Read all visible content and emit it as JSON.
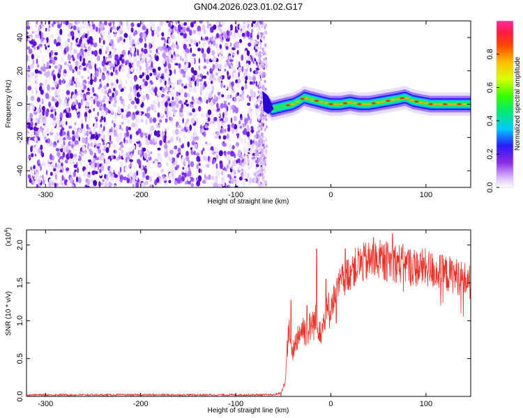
{
  "title": "GN04.2026.023.01.02.G17",
  "chart_data": [
    {
      "type": "heatmap",
      "name": "spectrogram",
      "xlabel": "Height of straight line (km)",
      "ylabel": "Frequency (Hz)",
      "xlim": [
        -320,
        147
      ],
      "ylim": [
        -50,
        50
      ],
      "xticks": [
        -300,
        -200,
        -100,
        0,
        100
      ],
      "yticks": [
        -40,
        -20,
        0,
        20,
        40
      ],
      "noise_region_x": [
        -320,
        -70
      ],
      "signal_track": {
        "x": [
          -70,
          -62,
          -55,
          -48,
          -40,
          -33,
          -28,
          -22,
          -15,
          -8,
          0,
          10,
          20,
          30,
          40,
          50,
          60,
          70,
          78,
          86,
          95,
          105,
          115,
          125,
          135,
          147
        ],
        "freq": [
          2,
          -3,
          -2,
          -1,
          0,
          2,
          4,
          3,
          2,
          1,
          0,
          0,
          1,
          0,
          0,
          1,
          2,
          3,
          4,
          2,
          1,
          0,
          0,
          0,
          0,
          0
        ]
      },
      "colorbar": {
        "label": "Normalized spectral amplitude",
        "range": [
          0.0,
          1.0
        ],
        "ticks": [
          0.0,
          0.2,
          0.4,
          0.6,
          0.8
        ],
        "tick_labels": [
          "0.0",
          "0.2",
          "0.4",
          "0.6",
          "0.8"
        ]
      }
    },
    {
      "type": "line",
      "name": "snr",
      "xlabel": "Height of straight line (km)",
      "ylabel": "SNR (10 * v/v)",
      "scale_note": "(x10",
      "scale_exp": "4",
      "xlim": [
        -320,
        147
      ],
      "ylim": [
        0.0,
        2.2
      ],
      "xticks": [
        -300,
        -200,
        -100,
        0,
        100
      ],
      "yticks": [
        0.0,
        0.5,
        1.0,
        1.5,
        2.0
      ],
      "ytick_labels": [
        "0.0",
        "0.5",
        "1.0",
        "1.5",
        "2.0"
      ],
      "color": "#e8332a",
      "envelope": {
        "x": [
          -320,
          -60,
          -52,
          -48,
          -46,
          -44,
          -42,
          -40,
          -35,
          -30,
          -25,
          -20,
          -15,
          -10,
          -5,
          0,
          10,
          20,
          30,
          40,
          50,
          60,
          70,
          80,
          90,
          100,
          110,
          120,
          130,
          140,
          147
        ],
        "y": [
          0.02,
          0.02,
          0.05,
          0.2,
          0.6,
          0.9,
          0.5,
          0.6,
          0.8,
          0.9,
          0.85,
          0.95,
          1.0,
          0.9,
          1.05,
          1.2,
          1.5,
          1.65,
          1.75,
          1.78,
          1.8,
          1.78,
          1.77,
          1.73,
          1.7,
          1.7,
          1.65,
          1.62,
          1.6,
          1.55,
          1.5
        ]
      },
      "spikes": [
        {
          "x": -42,
          "y": 1.27
        },
        {
          "x": -25,
          "y": 1.2
        },
        {
          "x": -15,
          "y": 1.95
        },
        {
          "x": -5,
          "y": 1.55
        },
        {
          "x": 15,
          "y": 1.95
        },
        {
          "x": 45,
          "y": 2.1
        },
        {
          "x": 65,
          "y": 2.15
        }
      ]
    }
  ]
}
